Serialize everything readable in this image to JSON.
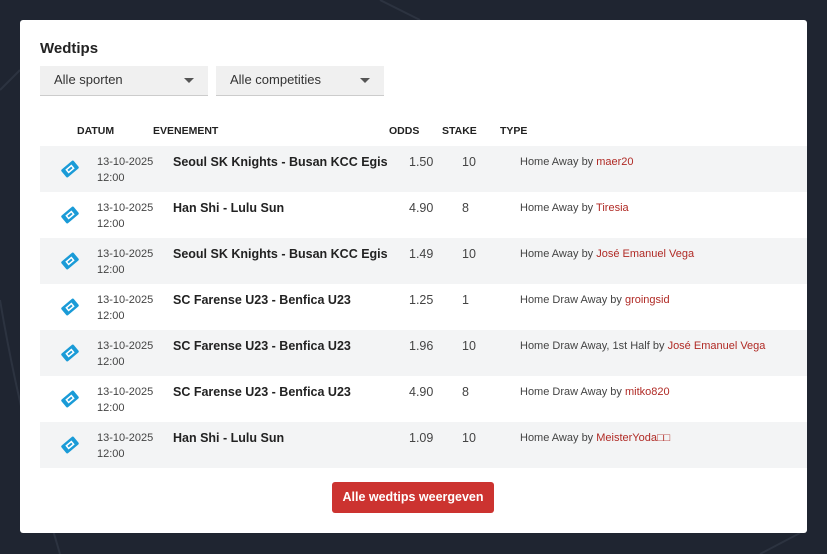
{
  "header": {
    "title": "Wedtips"
  },
  "filters": [
    "Alle sporten",
    "Alle competities"
  ],
  "table": {
    "columns": [
      "DATUM",
      "EVENEMENT",
      "ODDS",
      "STAKE",
      "TYPE"
    ],
    "by": "by",
    "rows": [
      {
        "date": "13-10-2025",
        "time": "12:00",
        "event": "Seoul SK Knights - Busan KCC Egis",
        "odds": "1.50",
        "stake": 10,
        "type": "Home Away",
        "user": "maer20"
      },
      {
        "date": "13-10-2025",
        "time": "12:00",
        "event": "Han Shi - Lulu Sun",
        "odds": "4.90",
        "stake": 8,
        "type": "Home Away",
        "user": "Tiresia"
      },
      {
        "date": "13-10-2025",
        "time": "12:00",
        "event": "Seoul SK Knights - Busan KCC Egis",
        "odds": "1.49",
        "stake": 10,
        "type": "Home Away",
        "user": "José Emanuel Vega"
      },
      {
        "date": "13-10-2025",
        "time": "12:00",
        "event": "SC Farense U23 - Benfica U23",
        "odds": "1.25",
        "stake": 1,
        "type": "Home Draw Away",
        "user": "groingsid"
      },
      {
        "date": "13-10-2025",
        "time": "12:00",
        "event": "SC Farense U23 - Benfica U23",
        "odds": "1.96",
        "stake": 10,
        "type": "Home Draw Away, 1st Half",
        "user": "José Emanuel Vega"
      },
      {
        "date": "13-10-2025",
        "time": "12:00",
        "event": "SC Farense U23 - Benfica U23",
        "odds": "4.90",
        "stake": 8,
        "type": "Home Draw Away",
        "user": "mitko820"
      },
      {
        "date": "13-10-2025",
        "time": "12:00",
        "event": "Han Shi - Lulu Sun",
        "odds": "1.09",
        "stake": 10,
        "type": "Home Away",
        "user": "MeisterYoda□□"
      }
    ]
  },
  "button": "Alle wedtips weergeven"
}
